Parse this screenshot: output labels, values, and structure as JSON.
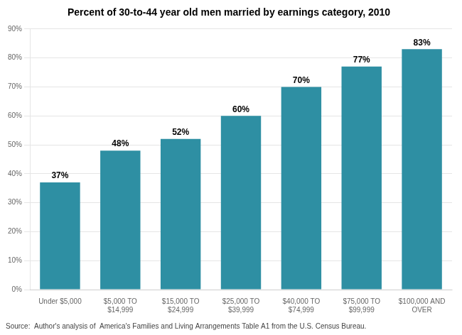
{
  "chart_data": {
    "type": "bar",
    "title": "Percent of 30-to-44 year old men married by earnings category, 2010",
    "categories": [
      "Under $5,000",
      "$5,000 TO\n$14,999",
      "$15,000 TO\n$24,999",
      "$25,000 TO\n$39,999",
      "$40,000 TO\n$74,999",
      "$75,000 TO\n$99,999",
      "$100,000 AND\nOVER"
    ],
    "values": [
      37,
      48,
      52,
      60,
      70,
      77,
      83
    ],
    "value_labels": [
      "37%",
      "48%",
      "52%",
      "60%",
      "70%",
      "77%",
      "83%"
    ],
    "data_labels": true,
    "color": "#2e8fa3",
    "ylim": [
      0,
      90
    ],
    "yticks": [
      {
        "value": 0,
        "label": "0%"
      },
      {
        "value": 10,
        "label": "10%"
      },
      {
        "value": 20,
        "label": "20%"
      },
      {
        "value": 30,
        "label": "30%"
      },
      {
        "value": 40,
        "label": "40%"
      },
      {
        "value": 50,
        "label": "50%"
      },
      {
        "value": 60,
        "label": "60%"
      },
      {
        "value": 70,
        "label": "70%"
      },
      {
        "value": 80,
        "label": "80%"
      },
      {
        "value": 90,
        "label": "90%"
      }
    ],
    "grid": true,
    "annotations": [
      "Source:  Author's analysis of  America's Families and Living Arrangements Table A1 from the U.S. Census Bureau."
    ]
  }
}
